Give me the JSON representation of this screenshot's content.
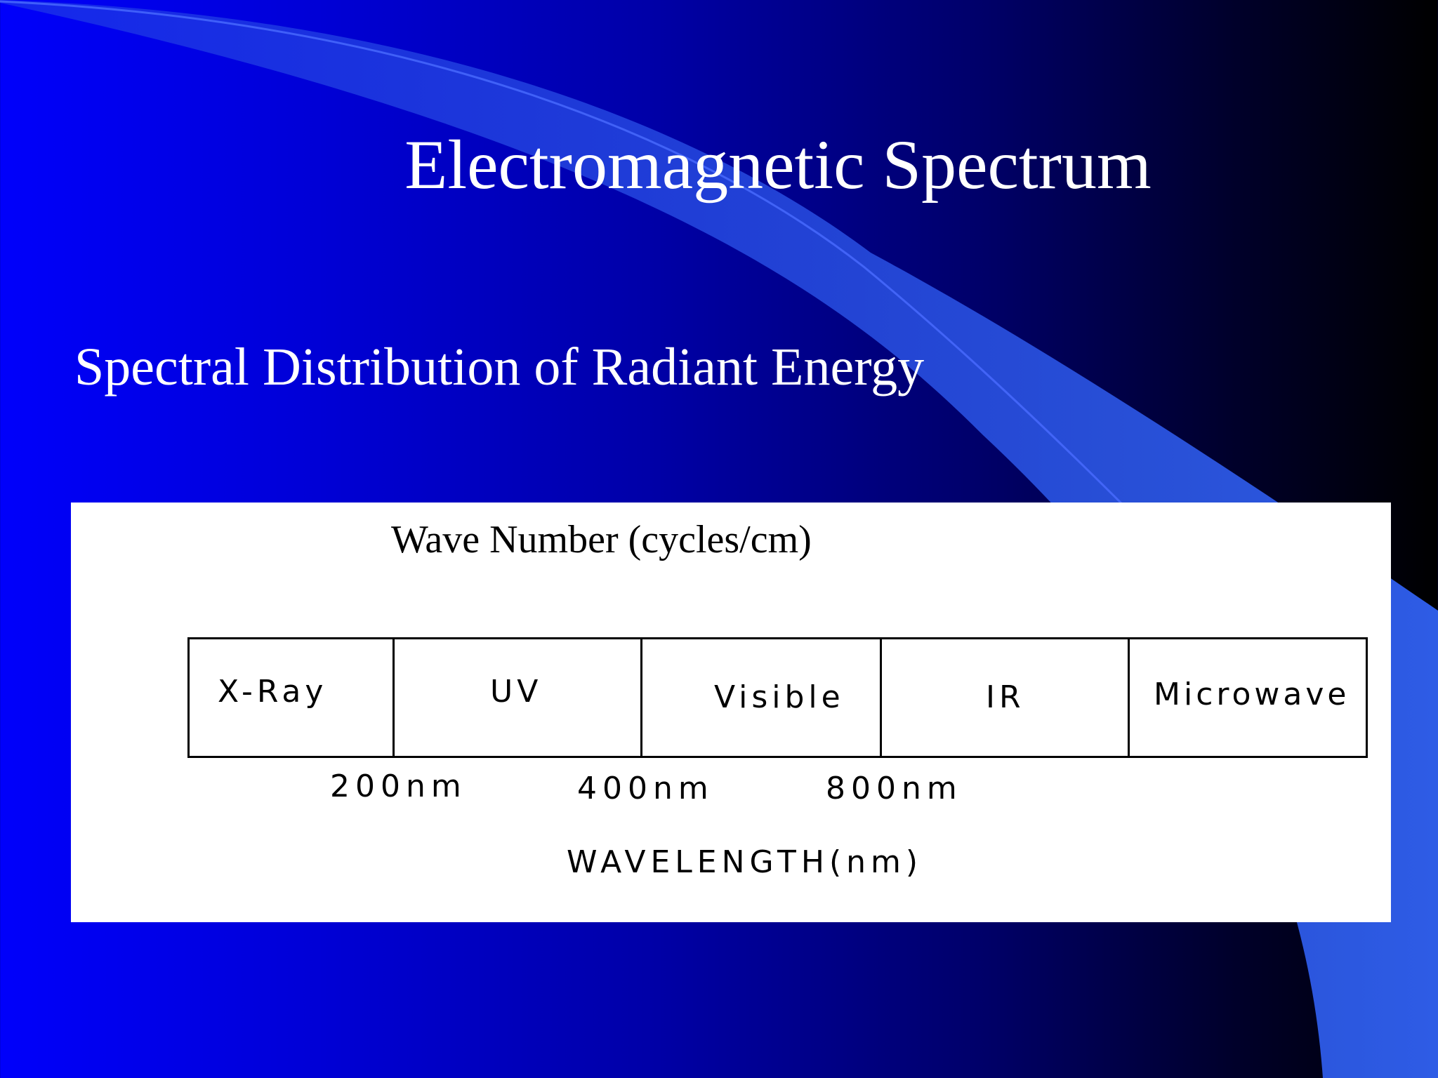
{
  "slide": {
    "title": "Electromagnetic Spectrum",
    "subtitle": "Spectral Distribution of Radiant Energy"
  },
  "diagram": {
    "top_axis_label": "Wave Number (cycles/cm)",
    "bands": [
      {
        "label": "X-Ray"
      },
      {
        "label": "UV"
      },
      {
        "label": "Visible"
      },
      {
        "label": "IR"
      },
      {
        "label": "Microwave"
      }
    ],
    "boundaries": [
      {
        "label": "200nm"
      },
      {
        "label": "400nm"
      },
      {
        "label": "800nm"
      }
    ],
    "bottom_axis_label": "WAVELENGTH(nm)"
  },
  "colors": {
    "background_left": "#0000fb",
    "background_right": "#000000",
    "swoosh": "#3366ff",
    "title_text": "#ffffff",
    "panel": "#ffffff"
  }
}
